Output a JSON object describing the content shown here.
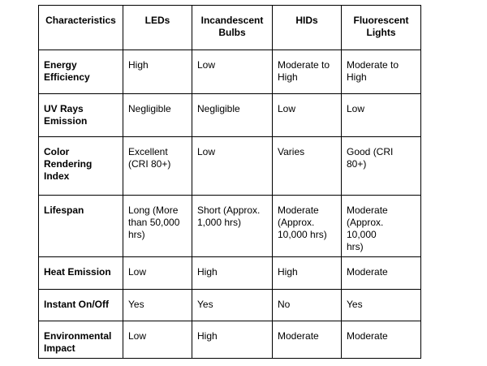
{
  "colors": {
    "border": "#000000",
    "text": "#000000",
    "background": "#ffffff"
  },
  "table": {
    "headers": [
      "Characteristics",
      "LEDs",
      "Incandescent\nBulbs",
      "HIDs",
      "Fluorescent\nLights"
    ],
    "rows": [
      {
        "label": "Energy\nEfficiency",
        "values": [
          "High",
          "Low",
          "Moderate to\nHigh",
          "Moderate to\nHigh"
        ]
      },
      {
        "label": "UV Rays\nEmission",
        "values": [
          "Negligible",
          "Negligible",
          "Low",
          "Low"
        ]
      },
      {
        "label": "Color\nRendering\nIndex",
        "values": [
          "Excellent\n(CRI 80+)",
          "Low",
          "Varies",
          "Good (CRI 80+)"
        ]
      },
      {
        "label": "Lifespan",
        "values": [
          "Long (More\nthan 50,000\nhrs)",
          "Short (Approx.\n1,000 hrs)",
          "Moderate\n(Approx.\n10,000 hrs)",
          "Moderate\n(Approx. 10,000\nhrs)"
        ]
      },
      {
        "label": "Heat Emission",
        "values": [
          "Low",
          "High",
          "High",
          "Moderate"
        ]
      },
      {
        "label": "Instant On/Off",
        "values": [
          "Yes",
          "Yes",
          "No",
          "Yes"
        ]
      },
      {
        "label": "Environmental\nImpact",
        "values": [
          "Low",
          "High",
          "Moderate",
          "Moderate"
        ]
      }
    ]
  }
}
